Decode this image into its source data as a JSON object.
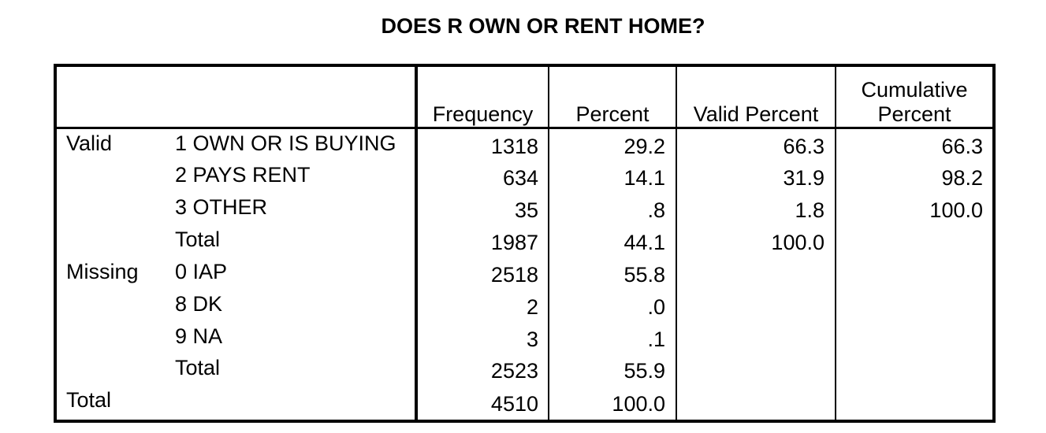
{
  "title": "DOES R OWN OR RENT HOME?",
  "headers": {
    "frequency": "Frequency",
    "percent": "Percent",
    "valid_percent": "Valid Percent",
    "cumulative_line1": "Cumulative",
    "cumulative_line2": "Percent"
  },
  "groups": {
    "valid": "Valid",
    "missing": "Missing",
    "total": "Total"
  },
  "rows": [
    {
      "label": "1  OWN OR IS BUYING",
      "frequency": "1318",
      "percent": "29.2",
      "valid_percent": "66.3",
      "cumulative": "66.3"
    },
    {
      "label": "2  PAYS RENT",
      "frequency": "634",
      "percent": "14.1",
      "valid_percent": "31.9",
      "cumulative": "98.2"
    },
    {
      "label": "3  OTHER",
      "frequency": "35",
      "percent": ".8",
      "valid_percent": "1.8",
      "cumulative": "100.0"
    },
    {
      "label": "Total",
      "frequency": "1987",
      "percent": "44.1",
      "valid_percent": "100.0",
      "cumulative": ""
    },
    {
      "label": "0  IAP",
      "frequency": "2518",
      "percent": "55.8",
      "valid_percent": "",
      "cumulative": ""
    },
    {
      "label": "8  DK",
      "frequency": "2",
      "percent": ".0",
      "valid_percent": "",
      "cumulative": ""
    },
    {
      "label": "9  NA",
      "frequency": "3",
      "percent": ".1",
      "valid_percent": "",
      "cumulative": ""
    },
    {
      "label": "Total",
      "frequency": "2523",
      "percent": "55.9",
      "valid_percent": "",
      "cumulative": ""
    },
    {
      "label": "",
      "frequency": "4510",
      "percent": "100.0",
      "valid_percent": "",
      "cumulative": ""
    }
  ]
}
